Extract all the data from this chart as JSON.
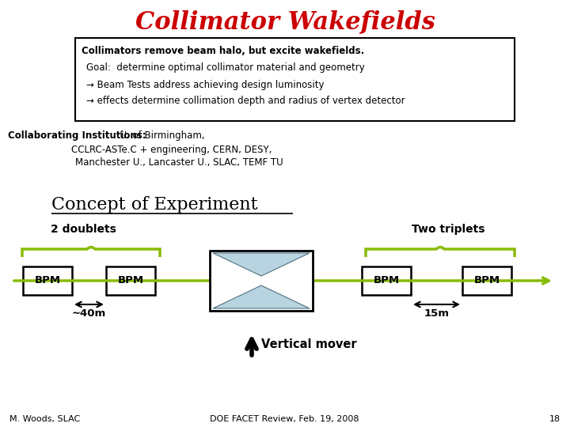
{
  "title": "Collimator Wakefields",
  "title_color": "#cc0000",
  "title_fontsize": 22,
  "box_text_bold": "Collimators remove beam halo, but excite wakefields.",
  "box_text_lines": [
    "Goal:  determine optimal collimator material and geometry",
    "→ Beam Tests address achieving design luminosity",
    "→ effects determine collimation depth and radius of vertex detector"
  ],
  "collab_bold": "Collaborating Institutions:",
  "collab_line2": "CCLRC-ASTe.C + engineering, CERN, DESY,",
  "collab_line3": "Manchester U., Lancaster U., SLAC, TEMF TU",
  "collab_line1rest": "  U. of Birmingham,",
  "concept_title": "Concept of Experiment",
  "doublets_label": "2 doublets",
  "triplets_label": "Two triplets",
  "bpm_labels": [
    "BPM",
    "BPM",
    "BPM",
    "BPM"
  ],
  "dist1_label": "~40m",
  "dist2_label": "15m",
  "vertical_mover_label": "Vertical mover",
  "footer_left": "M. Woods, SLAC",
  "footer_right": "DOE FACET Review, Feb. 19, 2008",
  "page_number": "18",
  "green_color": "#88bb00",
  "bg_color": "#ffffff",
  "arrow_color": "#000000",
  "collimator_fill": "#b8d4e0",
  "collimator_edge": "#507080"
}
